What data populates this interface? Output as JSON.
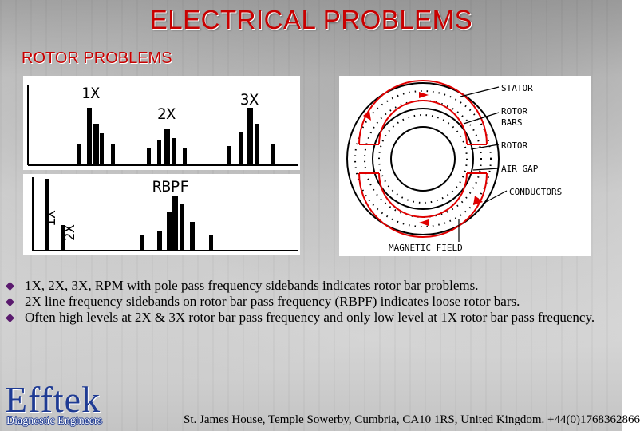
{
  "title": "ELECTRICAL  PROBLEMS",
  "subtitle": "ROTOR PROBLEMS",
  "spectrum_top": {
    "label_1x": "1X",
    "label_2x": "2X",
    "label_3x": "3X"
  },
  "spectrum_bottom": {
    "label_rbpf": "RBPF",
    "label_1x": "1X",
    "label_2x": "2X"
  },
  "motor_diagram": {
    "stator": "STATOR",
    "rotor_bars_line1": "ROTOR",
    "rotor_bars_line2": "BARS",
    "rotor": "ROTOR",
    "air_gap": "AIR GAP",
    "conductors": "CONDUCTORS",
    "magnetic_field": "MAGNETIC FIELD"
  },
  "bullets": [
    "1X, 2X, 3X, RPM with pole pass frequency sidebands indicates rotor bar problems.",
    "2X line frequency sidebands on rotor bar pass frequency (RBPF) indicates loose rotor bars.",
    "Often high levels at 2X  & 3X rotor bar pass frequency and only low level at 1X rotor bar pass frequency."
  ],
  "footer": {
    "logo": "Efftek",
    "tagline": "Diagnostic Engineers",
    "address": "St. James House, Temple Sowerby, Cumbria, CA10 1RS, United Kingdom. +44(0)1768362866"
  },
  "colors": {
    "title_red": "#c80000",
    "logo_blue": "#1f3b93",
    "field_red": "#e00000",
    "bullet_purple": "#5a1a6e"
  }
}
